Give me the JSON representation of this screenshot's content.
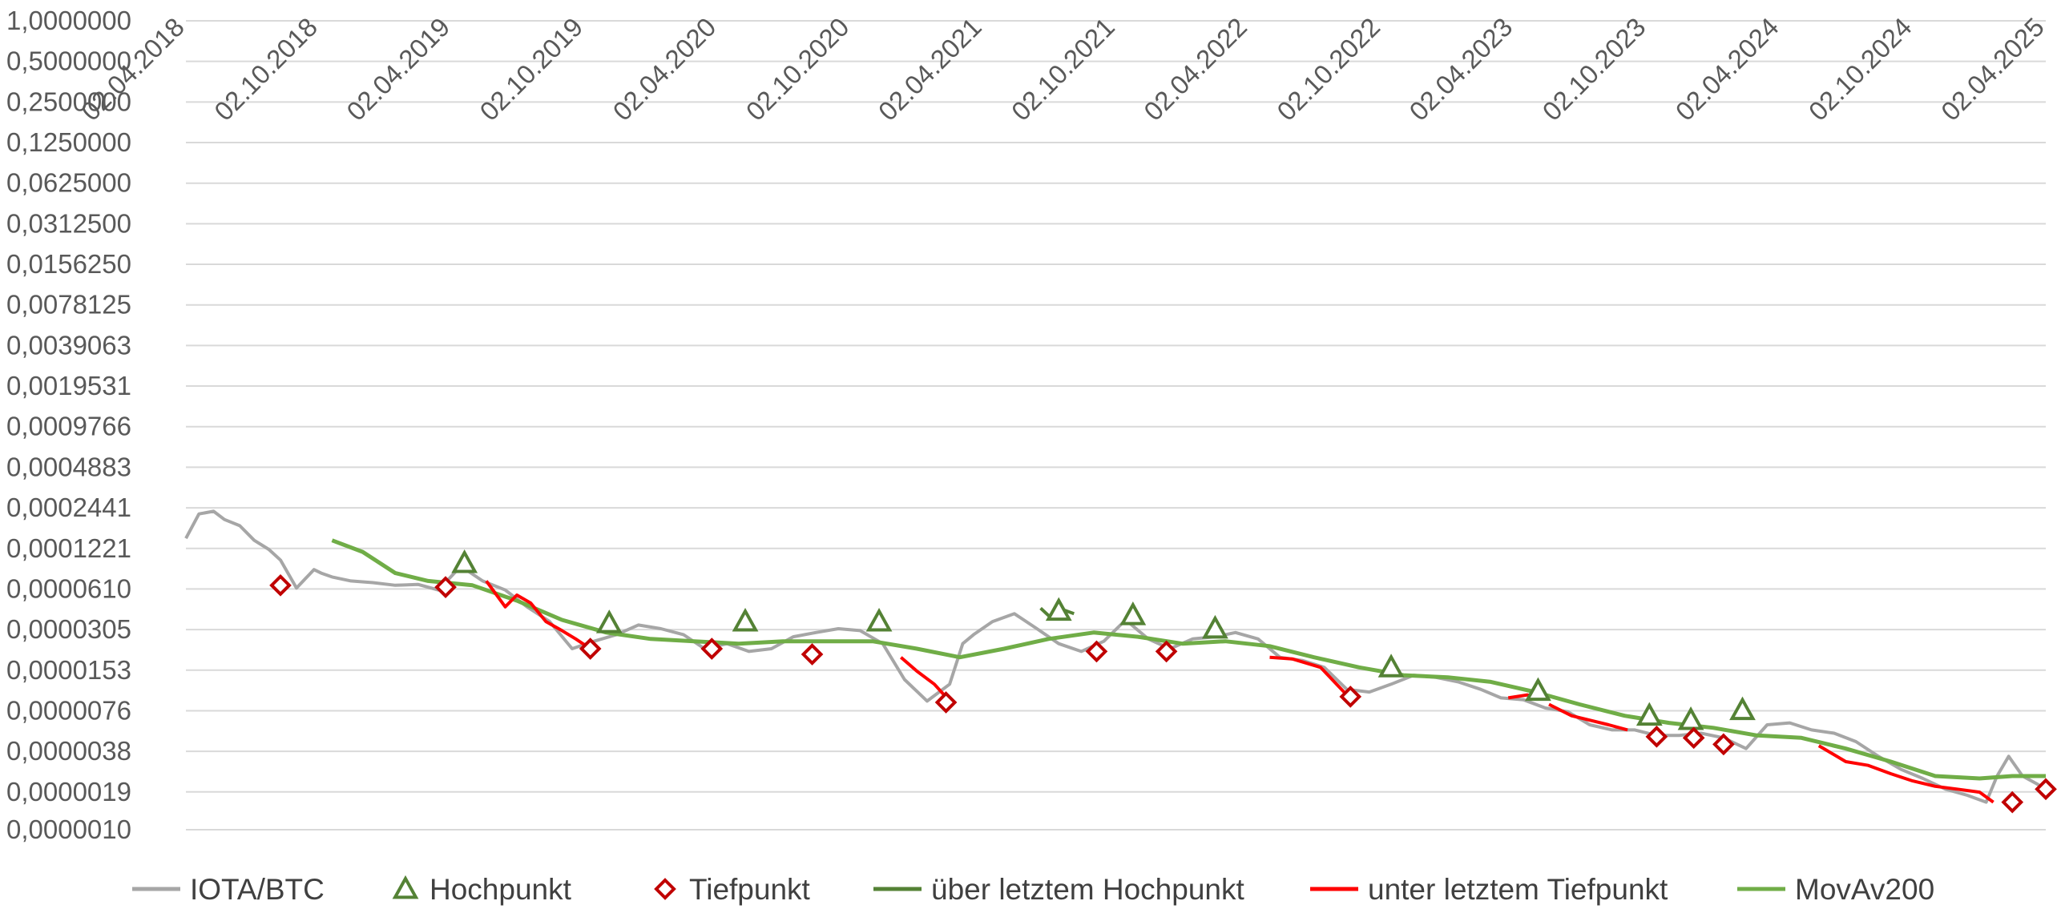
{
  "chart_data": {
    "type": "line",
    "title": "",
    "xlabel": "",
    "ylabel": "",
    "y_scale": "log2",
    "ylim": [
      1e-06,
      1
    ],
    "y_ticks": [
      1,
      0.5,
      0.25,
      0.125,
      0.0625,
      0.03125,
      0.015625,
      0.0078125,
      0.00390625,
      0.001953125,
      0.0009765625,
      0.00048828125,
      0.000244140625,
      0.0001220703125,
      6.103515625e-05,
      3.0517578125e-05,
      1.52587890625e-05,
      7.62939453125e-06,
      3.814697265625e-06,
      1.9073486328125e-06,
      1e-06
    ],
    "y_tick_labels": [
      "1,0000000",
      "0,5000000",
      "0,2500000",
      "0,1250000",
      "0,0625000",
      "0,0312500",
      "0,0156250",
      "0,0078125",
      "0,0039063",
      "0,0019531",
      "0,0009766",
      "0,0004883",
      "0,0002441",
      "0,0001221",
      "0,0000610",
      "0,0000305",
      "0,0000153",
      "0,0000076",
      "0,0000038",
      "0,0000019",
      "0,0000010"
    ],
    "xlim": [
      "2018-04-02",
      "2025-04-02"
    ],
    "x_ticks": [
      "2018-04-02",
      "2018-10-02",
      "2019-04-02",
      "2019-10-02",
      "2020-04-02",
      "2020-10-02",
      "2021-04-02",
      "2021-10-02",
      "2022-04-02",
      "2022-10-02",
      "2023-04-02",
      "2023-10-02",
      "2024-04-02",
      "2024-10-02",
      "2025-04-02"
    ],
    "x_tick_labels": [
      "02.04.2018",
      "02.10.2018",
      "02.04.2019",
      "02.10.2019",
      "02.04.2020",
      "02.10.2020",
      "02.04.2021",
      "02.10.2021",
      "02.04.2022",
      "02.10.2022",
      "02.04.2023",
      "02.10.2023",
      "02.04.2024",
      "02.10.2024",
      "02.04.2025"
    ],
    "grid": true,
    "legend_position": "bottom",
    "series": [
      {
        "name": "IOTA/BTC",
        "type": "line",
        "color": "#a6a6a6",
        "x": [
          "2018-04-02",
          "2018-04-20",
          "2018-05-10",
          "2018-05-25",
          "2018-06-15",
          "2018-07-05",
          "2018-07-25",
          "2018-08-10",
          "2018-09-01",
          "2018-09-25",
          "2018-10-05",
          "2018-10-20",
          "2018-11-15",
          "2018-12-15",
          "2019-01-15",
          "2019-02-15",
          "2019-03-15",
          "2019-04-15",
          "2019-05-15",
          "2019-06-15",
          "2019-07-15",
          "2019-08-15",
          "2019-09-15",
          "2019-10-15",
          "2019-11-15",
          "2019-12-15",
          "2020-01-15",
          "2020-02-15",
          "2020-03-15",
          "2020-04-15",
          "2020-05-15",
          "2020-06-15",
          "2020-07-15",
          "2020-08-15",
          "2020-09-15",
          "2020-10-15",
          "2020-11-15",
          "2020-12-15",
          "2021-01-15",
          "2021-02-15",
          "2021-03-05",
          "2021-03-20",
          "2021-04-15",
          "2021-05-15",
          "2021-06-15",
          "2021-07-15",
          "2021-08-15",
          "2021-09-15",
          "2021-10-15",
          "2021-11-15",
          "2021-12-15",
          "2022-01-15",
          "2022-02-15",
          "2022-03-15",
          "2022-04-15",
          "2022-05-15",
          "2022-06-15",
          "2022-07-15",
          "2022-08-15",
          "2022-09-15",
          "2022-10-15",
          "2022-11-15",
          "2022-12-15",
          "2023-01-15",
          "2023-02-15",
          "2023-03-15",
          "2023-04-15",
          "2023-05-15",
          "2023-06-15",
          "2023-07-15",
          "2023-08-15",
          "2023-09-15",
          "2023-10-15",
          "2023-11-15",
          "2023-12-15",
          "2024-01-15",
          "2024-02-15",
          "2024-03-15",
          "2024-04-15",
          "2024-05-15",
          "2024-06-15",
          "2024-07-15",
          "2024-08-15",
          "2024-09-15",
          "2024-10-15",
          "2024-11-15",
          "2024-12-15",
          "2025-01-10",
          "2025-01-25",
          "2025-02-10",
          "2025-03-01",
          "2025-03-20",
          "2025-04-02"
        ],
        "values": [
          0.000145,
          0.00022,
          0.00023,
          0.0002,
          0.00018,
          0.00014,
          0.00012,
          0.0001,
          6.2e-05,
          8.5e-05,
          8e-05,
          7.5e-05,
          7e-05,
          6.8e-05,
          6.5e-05,
          6.6e-05,
          6e-05,
          9e-05,
          7e-05,
          6e-05,
          4.5e-05,
          3.5e-05,
          2.2e-05,
          2.5e-05,
          2.8e-05,
          3.3e-05,
          3.1e-05,
          2.8e-05,
          2.2e-05,
          2.4e-05,
          2.1e-05,
          2.2e-05,
          2.7e-05,
          2.9e-05,
          3.1e-05,
          3e-05,
          2.4e-05,
          1.3e-05,
          9e-06,
          1.2e-05,
          2.4e-05,
          2.8e-05,
          3.5e-05,
          4e-05,
          3.1e-05,
          2.4e-05,
          2.1e-05,
          2.5e-05,
          3.6e-05,
          2.6e-05,
          2.2e-05,
          2.6e-05,
          2.7e-05,
          2.9e-05,
          2.6e-05,
          1.9e-05,
          1.8e-05,
          1.6e-05,
          1.1e-05,
          1.05e-05,
          1.2e-05,
          1.4e-05,
          1.35e-05,
          1.25e-05,
          1.1e-05,
          9.5e-06,
          9.2e-06,
          8e-06,
          7.5e-06,
          6e-06,
          5.5e-06,
          5.5e-06,
          5e-06,
          5e-06,
          5.2e-06,
          4.8e-06,
          4e-06,
          6e-06,
          6.2e-06,
          5.5e-06,
          5.2e-06,
          4.5e-06,
          3.5e-06,
          2.8e-06,
          2.4e-06,
          2e-06,
          1.8e-06,
          1.6e-06,
          2.5e-06,
          3.5e-06,
          2.5e-06,
          2.2e-06,
          2e-06
        ]
      },
      {
        "name": "MovAv200",
        "type": "line",
        "color": "#70ad47",
        "x": [
          "2018-10-20",
          "2018-12-01",
          "2019-01-15",
          "2019-03-01",
          "2019-05-01",
          "2019-07-01",
          "2019-09-01",
          "2019-11-01",
          "2020-01-01",
          "2020-03-01",
          "2020-05-01",
          "2020-07-01",
          "2020-09-01",
          "2020-11-01",
          "2021-01-01",
          "2021-03-01",
          "2021-05-01",
          "2021-07-01",
          "2021-09-01",
          "2021-11-01",
          "2022-01-01",
          "2022-03-01",
          "2022-05-01",
          "2022-07-01",
          "2022-09-01",
          "2022-11-01",
          "2023-01-01",
          "2023-03-01",
          "2023-05-01",
          "2023-07-01",
          "2023-09-01",
          "2023-11-01",
          "2024-01-01",
          "2024-03-01",
          "2024-05-01",
          "2024-07-01",
          "2024-09-01",
          "2024-11-01",
          "2025-01-01",
          "2025-02-15",
          "2025-04-02"
        ],
        "values": [
          0.00014,
          0.000115,
          8e-05,
          7e-05,
          6.5e-05,
          5e-05,
          3.6e-05,
          2.9e-05,
          2.6e-05,
          2.5e-05,
          2.4e-05,
          2.5e-05,
          2.5e-05,
          2.5e-05,
          2.2e-05,
          1.9e-05,
          2.2e-05,
          2.6e-05,
          2.9e-05,
          2.7e-05,
          2.4e-05,
          2.5e-05,
          2.3e-05,
          1.9e-05,
          1.6e-05,
          1.4e-05,
          1.35e-05,
          1.25e-05,
          1.05e-05,
          8.5e-06,
          7e-06,
          6.2e-06,
          5.7e-06,
          5e-06,
          4.8e-06,
          4e-06,
          3.2e-06,
          2.5e-06,
          2.4e-06,
          2.5e-06,
          2.5e-06
        ]
      },
      {
        "name": "über letztem Hochpunkt",
        "type": "line",
        "color": "#548235",
        "segments": [
          {
            "x": [
              "2021-06-20",
              "2021-07-05",
              "2021-07-20",
              "2021-08-05"
            ],
            "values": [
              4.4e-05,
              3.7e-05,
              4.3e-05,
              4e-05
            ]
          }
        ]
      },
      {
        "name": "unter letztem Tiefpunkt",
        "type": "line",
        "color": "#ff0000",
        "segments": [
          {
            "x": [
              "2019-05-20",
              "2019-06-15",
              "2019-07-01",
              "2019-07-20",
              "2019-08-10",
              "2019-09-01",
              "2019-09-20",
              "2019-10-10"
            ],
            "values": [
              7e-05,
              4.5e-05,
              5.5e-05,
              4.8e-05,
              3.5e-05,
              3e-05,
              2.6e-05,
              2.2e-05
            ]
          },
          {
            "x": [
              "2020-12-10",
              "2021-01-01",
              "2021-01-25",
              "2021-02-15"
            ],
            "values": [
              1.9e-05,
              1.5e-05,
              1.2e-05,
              9e-06
            ]
          },
          {
            "x": [
              "2022-05-01",
              "2022-06-01",
              "2022-07-10",
              "2022-08-15"
            ],
            "values": [
              1.9e-05,
              1.85e-05,
              1.6e-05,
              1e-05
            ]
          },
          {
            "x": [
              "2023-03-25",
              "2023-04-20",
              "2023-05-10"
            ],
            "values": [
              9.5e-06,
              1e-05,
              9.5e-06
            ]
          },
          {
            "x": [
              "2023-05-20",
              "2023-06-20",
              "2023-07-20",
              "2023-08-10",
              "2023-09-05"
            ],
            "values": [
              8.5e-06,
              7e-06,
              6.4e-06,
              6e-06,
              5.5e-06
            ]
          },
          {
            "x": [
              "2024-05-25",
              "2024-07-01",
              "2024-08-01",
              "2024-09-01",
              "2024-10-01",
              "2024-11-01",
              "2024-12-01",
              "2025-01-01",
              "2025-01-20"
            ],
            "values": [
              4.2e-06,
              3.2e-06,
              3e-06,
              2.6e-06,
              2.3e-06,
              2.1e-06,
              2e-06,
              1.9e-06,
              1.6e-06
            ]
          }
        ]
      },
      {
        "name": "Hochpunkt",
        "type": "scatter",
        "marker": "triangle",
        "color": "#548235",
        "x": [
          "2019-04-20",
          "2019-11-05",
          "2020-05-10",
          "2020-11-10",
          "2021-07-15",
          "2021-10-25",
          "2022-02-15",
          "2022-10-15",
          "2023-05-05",
          "2023-10-05",
          "2023-12-01",
          "2024-02-10"
        ],
        "values": [
          9.5e-05,
          3.4e-05,
          3.5e-05,
          3.5e-05,
          4.2e-05,
          3.9e-05,
          3.1e-05,
          1.6e-05,
          1.07e-05,
          7e-06,
          6.5e-06,
          7.7e-06
        ]
      },
      {
        "name": "Tiefpunkt",
        "type": "scatter",
        "marker": "diamond",
        "color": "#c00000",
        "x": [
          "2018-08-10",
          "2019-03-25",
          "2019-10-10",
          "2020-03-25",
          "2020-08-10",
          "2021-02-10",
          "2021-09-05",
          "2021-12-10",
          "2022-08-20",
          "2023-10-15",
          "2023-12-05",
          "2024-01-15",
          "2025-02-15",
          "2025-04-02"
        ],
        "values": [
          6.5e-05,
          6.3e-05,
          2.2e-05,
          2.2e-05,
          2e-05,
          8.8e-06,
          2.1e-05,
          2.1e-05,
          9.7e-06,
          4.9e-06,
          4.8e-06,
          4.3e-06,
          1.6e-06,
          2e-06
        ]
      }
    ]
  }
}
